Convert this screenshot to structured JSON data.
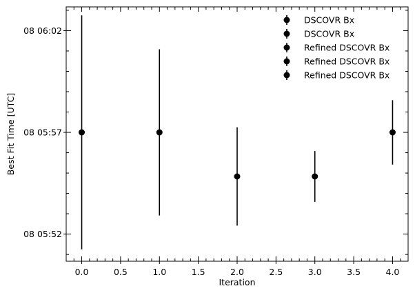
{
  "chart_data": {
    "type": "scatter",
    "title": "",
    "xlabel": "Iteration",
    "ylabel": "Best Fit Time [UTC]",
    "xlim": [
      -0.2,
      4.2
    ],
    "ylim": [
      "08 05:50:40",
      "08 06:03:10"
    ],
    "xticks": [
      {
        "value": 0.0,
        "label": "0.0"
      },
      {
        "value": 0.5,
        "label": "0.5"
      },
      {
        "value": 1.0,
        "label": "1.0"
      },
      {
        "value": 1.5,
        "label": "1.5"
      },
      {
        "value": 2.0,
        "label": "2.0"
      },
      {
        "value": 2.5,
        "label": "2.5"
      },
      {
        "value": 3.0,
        "label": "3.0"
      },
      {
        "value": 3.5,
        "label": "3.5"
      },
      {
        "value": 4.0,
        "label": "4.0"
      }
    ],
    "yticks": [
      {
        "value": "08 05:52:00",
        "label": "08 05:52"
      },
      {
        "value": "08 05:57:00",
        "label": "08 05:57"
      },
      {
        "value": "08 06:02:00",
        "label": "08 06:02"
      }
    ],
    "grid": false,
    "legend_position": "top-right",
    "marker_color": "#000000",
    "series": [
      {
        "name": "DSCOVR Bx",
        "x": 0,
        "y": "08 05:57:00",
        "y_low": "08 05:51:15",
        "y_high": "08 06:02:45"
      },
      {
        "name": "DSCOVR Bx",
        "x": 1,
        "y": "08 05:57:00",
        "y_low": "08 05:52:55",
        "y_high": "08 06:01:05"
      },
      {
        "name": "Refined DSCOVR Bx",
        "x": 2,
        "y": "08 05:54:50",
        "y_low": "08 05:52:25",
        "y_high": "08 05:57:15"
      },
      {
        "name": "Refined DSCOVR Bx",
        "x": 3,
        "y": "08 05:54:50",
        "y_low": "08 05:53:35",
        "y_high": "08 05:56:05"
      },
      {
        "name": "Refined DSCOVR Bx",
        "x": 4,
        "y": "08 05:57:00",
        "y_low": "08 05:55:25",
        "y_high": "08 05:58:35"
      }
    ]
  }
}
